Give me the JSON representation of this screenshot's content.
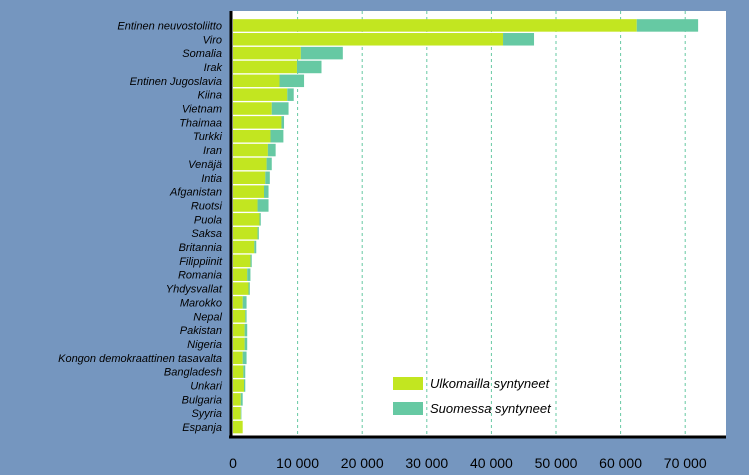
{
  "chart_data": {
    "type": "bar",
    "stacked": true,
    "orientation": "horizontal",
    "title": "",
    "xlabel": "",
    "ylabel": "",
    "xlim": [
      0,
      72000
    ],
    "x_ticks": [
      0,
      10000,
      20000,
      30000,
      40000,
      50000,
      60000,
      70000
    ],
    "x_tick_labels": [
      "0",
      "10 000",
      "20 000",
      "30 000",
      "40 000",
      "50 000",
      "60 000",
      "70 000"
    ],
    "grid": "vertical dashed",
    "legend_position": "bottom-right",
    "categories": [
      "Entinen neuvostoliitto",
      "Viro",
      "Somalia",
      "Irak",
      "Entinen Jugoslavia",
      "Kiina",
      "Vietnam",
      "Thaimaa",
      "Turkki",
      "Iran",
      "Venäjä",
      "Intia",
      "Afganistan",
      "Ruotsi",
      "Puola",
      "Saksa",
      "Britannia",
      "Filippiinit",
      "Romania",
      "Yhdysvallat",
      "Marokko",
      "Nepal",
      "Pakistan",
      "Nigeria",
      "Kongon demokraattinen tasavalta",
      "Bangladesh",
      "Unkari",
      "Bulgaria",
      "Syyria",
      "Espanja"
    ],
    "series": [
      {
        "name": "Ulkomailla syntyneet",
        "color": "#C2E620",
        "values": [
          62500,
          41800,
          10500,
          9900,
          7200,
          8400,
          6000,
          7500,
          5800,
          5400,
          5200,
          5000,
          4800,
          3800,
          4100,
          3800,
          3300,
          2700,
          2200,
          2400,
          1500,
          1900,
          1800,
          1800,
          1500,
          1600,
          1700,
          1200,
          1200,
          1500
        ]
      },
      {
        "name": "Suomessa syntyneet",
        "color": "#66C9A3",
        "values": [
          9500,
          4800,
          6500,
          3800,
          3800,
          1000,
          2600,
          400,
          2000,
          1200,
          800,
          700,
          700,
          1700,
          200,
          200,
          300,
          200,
          500,
          200,
          600,
          200,
          400,
          400,
          600,
          300,
          200,
          300,
          100,
          0
        ]
      }
    ]
  }
}
